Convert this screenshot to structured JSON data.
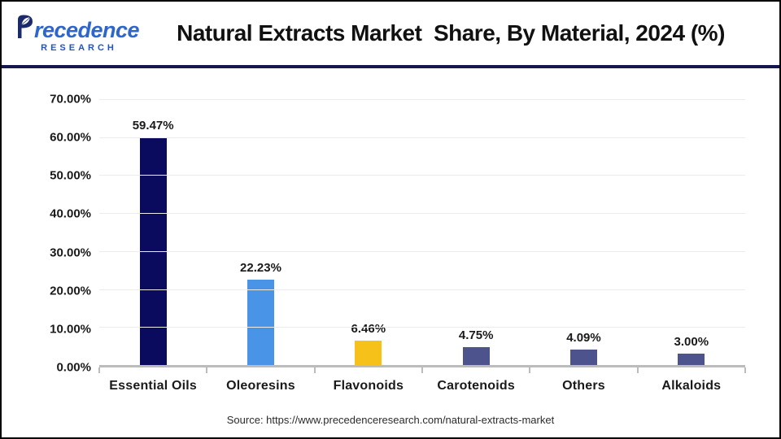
{
  "header": {
    "logo": {
      "brand_first_letter": "P",
      "brand_rest": "recedence",
      "subtitle": "RESEARCH"
    },
    "title": "Natural Extracts Market  Share, By Material, 2024 (%)"
  },
  "chart_data": {
    "type": "bar",
    "title": "Natural Extracts Market Share, By Material, 2024 (%)",
    "categories": [
      "Essential Oils",
      "Oleoresins",
      "Flavonoids",
      "Carotenoids",
      "Others",
      "Alkaloids"
    ],
    "values": [
      59.47,
      22.23,
      6.46,
      4.75,
      4.09,
      3.0
    ],
    "value_labels": [
      "59.47%",
      "22.23%",
      "6.46%",
      "4.75%",
      "4.09%",
      "3.00%"
    ],
    "bar_colors": [
      "#0a0a5e",
      "#4a94e8",
      "#f6c21a",
      "#4d538c",
      "#4d538c",
      "#4d538c"
    ],
    "xlabel": "",
    "ylabel": "",
    "ylim": [
      0,
      70
    ],
    "ytick_step": 10,
    "yticks": [
      "70.00%",
      "60.00%",
      "50.00%",
      "40.00%",
      "30.00%",
      "20.00%",
      "10.00%",
      "0.00%"
    ],
    "grid": true,
    "legend": false
  },
  "footer": {
    "source": "Source: https://www.precedenceresearch.com/natural-extracts-market"
  },
  "colors": {
    "divider_navy": "#16164e",
    "axis_line": "#bcbcbc",
    "gridline": "#ececec",
    "logo_navy": "#1b2a6b",
    "logo_blue": "#2e66cc",
    "logo_research_blue": "#2453c4"
  }
}
